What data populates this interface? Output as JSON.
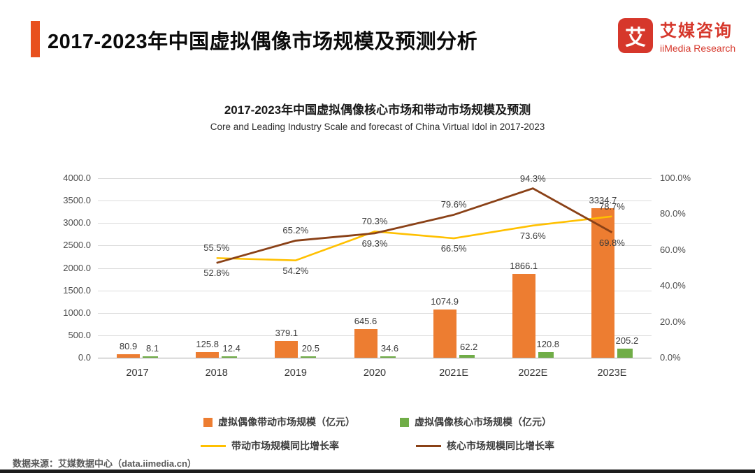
{
  "header": {
    "title": "2017-2023年中国虚拟偶像市场规模及预测分析",
    "logo": {
      "icon_char": "艾",
      "brand_cn": "艾媒咨询",
      "brand_en": "iiMedia Research"
    }
  },
  "chart": {
    "title_cn": "2017-2023年中国虚拟偶像核心市场和带动市场规模及预测",
    "title_en": "Core and Leading Industry Scale and forecast of China Virtual Idol in 2017-2023"
  },
  "chart_data": {
    "type": "bar",
    "subtype": "combo-bar-line",
    "categories": [
      "2017",
      "2018",
      "2019",
      "2020",
      "2021E",
      "2022E",
      "2023E"
    ],
    "bar_series": [
      {
        "name": "虚拟偶像带动市场规模（亿元）",
        "color": "#ED7D31",
        "values": [
          80.9,
          125.8,
          379.1,
          645.6,
          1074.9,
          1866.1,
          3334.7
        ]
      },
      {
        "name": "虚拟偶像核心市场规模（亿元）",
        "color": "#70AD47",
        "values": [
          8.1,
          12.4,
          20.5,
          34.6,
          62.2,
          120.8,
          205.2
        ]
      }
    ],
    "line_series": [
      {
        "name": "带动市场规模同比增长率",
        "color": "#FFC000",
        "values": [
          null,
          55.5,
          54.2,
          70.3,
          66.5,
          73.6,
          78.7
        ]
      },
      {
        "name": "核心市场规模同比增长率",
        "color": "#8A4117",
        "values": [
          null,
          52.8,
          65.2,
          69.3,
          79.6,
          94.3,
          69.8
        ]
      }
    ],
    "left_axis": {
      "min": 0,
      "max": 4000,
      "step": 500,
      "labels": [
        "4000.0",
        "3500.0",
        "3000.0",
        "2500.0",
        "2000.0",
        "1500.0",
        "1000.0",
        "500.0",
        "0.0"
      ]
    },
    "right_axis": {
      "min": 0,
      "max": 100,
      "step": 20,
      "labels": [
        "100.0%",
        "80.0%",
        "60.0%",
        "40.0%",
        "20.0%",
        "0.0%"
      ]
    },
    "grid": true,
    "legend_position": "bottom"
  },
  "footer": {
    "source": "数据来源：艾媒数据中心（data.iimedia.cn）"
  }
}
